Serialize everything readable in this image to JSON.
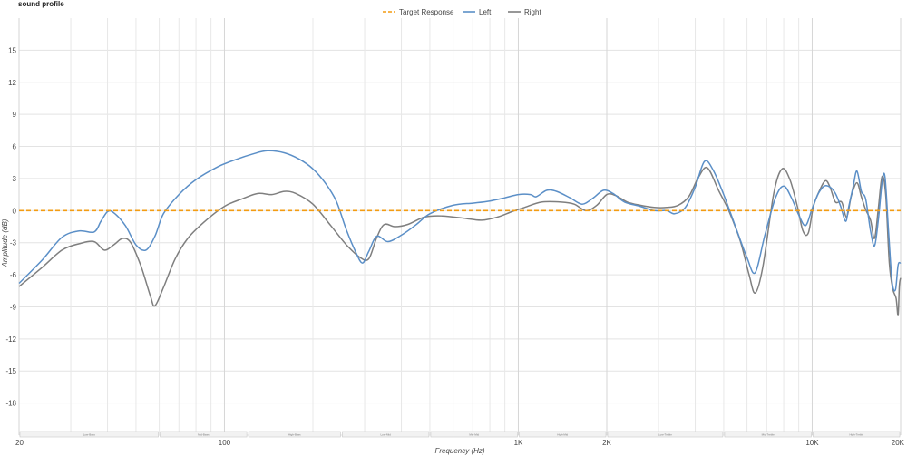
{
  "title": "sound profile",
  "chart_data": {
    "type": "line",
    "xlabel": "Frequency (Hz)",
    "ylabel": "Amplitude (dB)",
    "x_scale": "log",
    "xlim": [
      20,
      20000
    ],
    "ylim": [
      -21,
      18
    ],
    "grid": true,
    "legend_position": "top-center",
    "y_ticks": [
      15,
      12,
      9,
      6,
      3,
      0,
      -3,
      -6,
      -9,
      -12,
      -15,
      -18
    ],
    "x_tick_labels": [
      {
        "value": 20,
        "label": "20"
      },
      {
        "value": 100,
        "label": "100"
      },
      {
        "value": 1000,
        "label": "1K"
      },
      {
        "value": 2000,
        "label": "2K"
      },
      {
        "value": 10000,
        "label": "10K"
      },
      {
        "value": 20000,
        "label": "20K"
      }
    ],
    "bands": [
      {
        "label": "Low-Bass",
        "from": 20,
        "to": 60
      },
      {
        "label": "Mid-Bass",
        "from": 60,
        "to": 120
      },
      {
        "label": "High-Bass",
        "from": 120,
        "to": 250
      },
      {
        "label": "Low-Mid",
        "from": 250,
        "to": 500
      },
      {
        "label": "Mid-Mid",
        "from": 500,
        "to": 1000
      },
      {
        "label": "High-Mid",
        "from": 1000,
        "to": 2000
      },
      {
        "label": "Low-Treble",
        "from": 2000,
        "to": 5000
      },
      {
        "label": "Mid-Treble",
        "from": 5000,
        "to": 10000
      },
      {
        "label": "High-Treble",
        "from": 10000,
        "to": 20000
      }
    ],
    "series": [
      {
        "name": "Target Response",
        "color": "#f39c12",
        "dashed": true,
        "points": [
          [
            20,
            0
          ],
          [
            20000,
            0
          ]
        ]
      },
      {
        "name": "Left",
        "color": "#5b8fc7",
        "dashed": false,
        "points": [
          [
            20,
            -6.8
          ],
          [
            24,
            -4.6
          ],
          [
            28,
            -2.5
          ],
          [
            32,
            -1.9
          ],
          [
            36,
            -2.0
          ],
          [
            38,
            -1.0
          ],
          [
            40,
            -0.1
          ],
          [
            42,
            -0.2
          ],
          [
            46,
            -1.4
          ],
          [
            50,
            -3.2
          ],
          [
            54,
            -3.7
          ],
          [
            58,
            -2.4
          ],
          [
            62,
            -0.3
          ],
          [
            70,
            1.5
          ],
          [
            80,
            2.9
          ],
          [
            95,
            4.1
          ],
          [
            110,
            4.8
          ],
          [
            125,
            5.3
          ],
          [
            140,
            5.6
          ],
          [
            160,
            5.4
          ],
          [
            180,
            4.8
          ],
          [
            200,
            3.9
          ],
          [
            220,
            2.6
          ],
          [
            240,
            0.9
          ],
          [
            260,
            -1.8
          ],
          [
            280,
            -3.9
          ],
          [
            295,
            -4.9
          ],
          [
            310,
            -3.8
          ],
          [
            330,
            -2.4
          ],
          [
            360,
            -2.9
          ],
          [
            400,
            -2.3
          ],
          [
            450,
            -1.3
          ],
          [
            500,
            -0.3
          ],
          [
            600,
            0.5
          ],
          [
            700,
            0.7
          ],
          [
            800,
            0.9
          ],
          [
            900,
            1.2
          ],
          [
            1000,
            1.5
          ],
          [
            1100,
            1.5
          ],
          [
            1150,
            1.3
          ],
          [
            1250,
            1.9
          ],
          [
            1350,
            1.8
          ],
          [
            1500,
            1.2
          ],
          [
            1650,
            0.6
          ],
          [
            1800,
            1.2
          ],
          [
            1950,
            1.9
          ],
          [
            2100,
            1.6
          ],
          [
            2300,
            0.8
          ],
          [
            2600,
            0.4
          ],
          [
            2900,
            0.0
          ],
          [
            3200,
            0.0
          ],
          [
            3400,
            -0.3
          ],
          [
            3700,
            0.3
          ],
          [
            4000,
            2.2
          ],
          [
            4300,
            4.6
          ],
          [
            4600,
            3.8
          ],
          [
            5000,
            1.5
          ],
          [
            5500,
            -1.6
          ],
          [
            6000,
            -4.4
          ],
          [
            6400,
            -5.8
          ],
          [
            6900,
            -2.3
          ],
          [
            7500,
            1.2
          ],
          [
            8000,
            2.3
          ],
          [
            8500,
            1.2
          ],
          [
            9000,
            -0.4
          ],
          [
            9500,
            -1.4
          ],
          [
            10000,
            0.2
          ],
          [
            10500,
            1.6
          ],
          [
            11000,
            2.3
          ],
          [
            11500,
            2.2
          ],
          [
            12000,
            1.6
          ],
          [
            12500,
            0.4
          ],
          [
            13000,
            -1.0
          ],
          [
            13300,
            0.3
          ],
          [
            13800,
            2.3
          ],
          [
            14200,
            3.7
          ],
          [
            14700,
            1.8
          ],
          [
            15200,
            1.1
          ],
          [
            15800,
            -1.9
          ],
          [
            16300,
            -3.3
          ],
          [
            16800,
            -0.8
          ],
          [
            17300,
            2.7
          ],
          [
            17700,
            3.1
          ],
          [
            18200,
            -2.0
          ],
          [
            18700,
            -6.6
          ],
          [
            19200,
            -7.4
          ],
          [
            19600,
            -5.1
          ],
          [
            20000,
            -4.9
          ]
        ]
      },
      {
        "name": "Right",
        "color": "#7f7f7f",
        "dashed": false,
        "points": [
          [
            20,
            -7.1
          ],
          [
            24,
            -5.3
          ],
          [
            28,
            -3.7
          ],
          [
            32,
            -3.1
          ],
          [
            36,
            -2.9
          ],
          [
            39,
            -3.7
          ],
          [
            42,
            -3.2
          ],
          [
            45,
            -2.6
          ],
          [
            48,
            -3.0
          ],
          [
            52,
            -5.2
          ],
          [
            56,
            -8.0
          ],
          [
            58,
            -8.9
          ],
          [
            62,
            -7.2
          ],
          [
            68,
            -4.5
          ],
          [
            75,
            -2.6
          ],
          [
            85,
            -1.1
          ],
          [
            100,
            0.4
          ],
          [
            115,
            1.1
          ],
          [
            130,
            1.6
          ],
          [
            145,
            1.5
          ],
          [
            160,
            1.8
          ],
          [
            175,
            1.6
          ],
          [
            200,
            0.6
          ],
          [
            230,
            -1.4
          ],
          [
            260,
            -3.2
          ],
          [
            290,
            -4.4
          ],
          [
            310,
            -4.5
          ],
          [
            330,
            -2.5
          ],
          [
            350,
            -1.3
          ],
          [
            380,
            -1.5
          ],
          [
            420,
            -1.3
          ],
          [
            480,
            -0.6
          ],
          [
            550,
            -0.5
          ],
          [
            650,
            -0.7
          ],
          [
            750,
            -0.9
          ],
          [
            850,
            -0.6
          ],
          [
            950,
            -0.1
          ],
          [
            1050,
            0.3
          ],
          [
            1200,
            0.8
          ],
          [
            1400,
            0.8
          ],
          [
            1550,
            0.6
          ],
          [
            1700,
            0.0
          ],
          [
            1850,
            0.5
          ],
          [
            2000,
            1.5
          ],
          [
            2150,
            1.4
          ],
          [
            2350,
            0.8
          ],
          [
            2600,
            0.5
          ],
          [
            2900,
            0.3
          ],
          [
            3200,
            0.3
          ],
          [
            3500,
            0.5
          ],
          [
            3800,
            1.3
          ],
          [
            4100,
            3.1
          ],
          [
            4400,
            4.0
          ],
          [
            4800,
            1.9
          ],
          [
            5200,
            0.0
          ],
          [
            5700,
            -2.9
          ],
          [
            6100,
            -6.0
          ],
          [
            6400,
            -7.7
          ],
          [
            6800,
            -5.2
          ],
          [
            7400,
            1.6
          ],
          [
            7900,
            3.9
          ],
          [
            8400,
            2.9
          ],
          [
            8900,
            0.4
          ],
          [
            9300,
            -1.9
          ],
          [
            9700,
            -2.1
          ],
          [
            10100,
            0.4
          ],
          [
            10600,
            1.9
          ],
          [
            11100,
            2.8
          ],
          [
            11500,
            2.2
          ],
          [
            12000,
            0.8
          ],
          [
            12600,
            0.8
          ],
          [
            13100,
            -0.6
          ],
          [
            13600,
            1.4
          ],
          [
            14200,
            2.6
          ],
          [
            14700,
            1.3
          ],
          [
            15200,
            0.1
          ],
          [
            15800,
            -0.9
          ],
          [
            16300,
            -2.6
          ],
          [
            16800,
            0.3
          ],
          [
            17300,
            3.2
          ],
          [
            17800,
            1.4
          ],
          [
            18300,
            -4.9
          ],
          [
            18800,
            -7.3
          ],
          [
            19300,
            -8.2
          ],
          [
            19600,
            -9.8
          ],
          [
            19800,
            -7.0
          ],
          [
            20000,
            -6.3
          ]
        ]
      }
    ]
  }
}
